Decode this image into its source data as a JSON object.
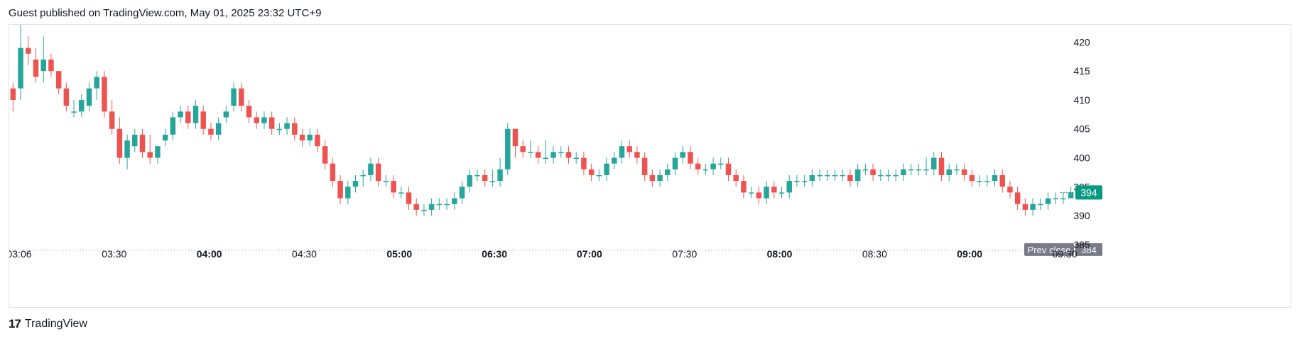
{
  "header": {
    "text": "Guest published on TradingView.com, May 01, 2025 23:32 UTC+9"
  },
  "footer": {
    "logo": "17",
    "brand": "TradingView"
  },
  "colors": {
    "up": "#26a69a",
    "down": "#ef5350",
    "grey_label": "#787b86",
    "last_price_bg": "#089981"
  },
  "chart_data": {
    "type": "candlestick",
    "y_axis": {
      "ticks": [
        385,
        390,
        395,
        400,
        405,
        410,
        415,
        420
      ],
      "range": [
        383.5,
        423
      ]
    },
    "x_axis": {
      "ticks": [
        {
          "label": "03:06",
          "bold": false
        },
        {
          "label": "03:30",
          "bold": false
        },
        {
          "label": "04:00",
          "bold": true
        },
        {
          "label": "04:30",
          "bold": false
        },
        {
          "label": "05:00",
          "bold": true
        },
        {
          "label": "06:30",
          "bold": true
        },
        {
          "label": "07:00",
          "bold": true
        },
        {
          "label": "07:30",
          "bold": false
        },
        {
          "label": "08:00",
          "bold": true
        },
        {
          "label": "08:30",
          "bold": false
        },
        {
          "label": "09:00",
          "bold": true
        },
        {
          "label": "09:30",
          "bold": false
        }
      ]
    },
    "prev_close": {
      "label": "Prev close",
      "value": 384
    },
    "last_price": 394,
    "series_close": [
      410,
      419,
      418,
      414,
      417,
      415,
      412,
      409,
      408,
      410,
      412,
      414,
      408,
      405,
      400,
      403,
      404,
      401,
      400,
      402,
      404,
      407,
      408,
      406,
      409,
      405,
      404,
      406,
      408,
      412,
      409,
      407,
      406,
      407,
      405,
      405,
      406,
      404,
      403,
      404,
      402,
      399,
      396,
      393,
      395,
      396,
      397,
      399,
      396,
      396,
      394,
      394,
      392,
      391,
      391,
      392,
      392,
      392,
      393,
      395,
      397,
      397,
      396,
      396,
      398,
      405,
      402,
      401,
      401,
      400,
      400,
      401,
      401,
      400,
      400,
      398,
      397,
      397,
      399,
      400,
      402,
      401,
      400,
      397,
      396,
      397,
      398,
      400,
      401,
      399,
      398,
      398,
      399,
      399,
      397,
      396,
      394,
      394,
      393,
      395,
      394,
      394,
      396,
      396,
      396,
      397,
      397,
      397,
      397,
      397,
      396,
      398,
      398,
      397,
      397,
      397,
      397,
      398,
      398,
      398,
      398,
      400,
      397,
      398,
      398,
      397,
      396,
      396,
      396,
      397,
      395,
      394,
      392,
      391,
      392,
      392,
      393,
      393,
      393,
      394
    ],
    "series_open": [
      412,
      412,
      419,
      417,
      415,
      417,
      415,
      412,
      408,
      408,
      409,
      412,
      414,
      408,
      405,
      400,
      402,
      404,
      401,
      400,
      403,
      404,
      407,
      408,
      406,
      408,
      405,
      404,
      407,
      409,
      412,
      409,
      407,
      406,
      407,
      405,
      405,
      406,
      404,
      403,
      404,
      402,
      399,
      396,
      393,
      395,
      397,
      397,
      399,
      396,
      396,
      394,
      394,
      392,
      391,
      391,
      392,
      392,
      392,
      393,
      395,
      397,
      397,
      396,
      396,
      398,
      405,
      402,
      401,
      401,
      400,
      400,
      401,
      401,
      400,
      400,
      398,
      397,
      397,
      399,
      400,
      402,
      401,
      400,
      397,
      396,
      397,
      398,
      400,
      401,
      399,
      398,
      398,
      399,
      399,
      397,
      396,
      394,
      394,
      393,
      395,
      394,
      394,
      396,
      396,
      396,
      397,
      397,
      397,
      397,
      397,
      396,
      398,
      398,
      397,
      397,
      397,
      397,
      398,
      398,
      398,
      398,
      400,
      397,
      398,
      398,
      397,
      396,
      396,
      396,
      397,
      395,
      394,
      392,
      391,
      392,
      392,
      393,
      393,
      393
    ],
    "series_high": [
      413,
      423,
      421,
      419,
      421,
      418,
      415,
      413,
      410,
      411,
      413,
      415,
      415,
      410,
      407,
      404,
      405,
      405,
      404,
      402,
      405,
      408,
      409,
      409,
      410,
      409,
      406,
      407,
      409,
      413,
      413,
      410,
      408,
      408,
      408,
      406,
      407,
      407,
      405,
      405,
      405,
      403,
      400,
      397,
      396,
      397,
      398,
      400,
      400,
      397,
      397,
      395,
      395,
      393,
      392,
      393,
      393,
      393,
      394,
      396,
      398,
      398,
      398,
      398,
      400,
      406,
      405,
      403,
      403,
      402,
      403,
      402,
      402,
      402,
      401,
      401,
      399,
      398,
      400,
      401,
      403,
      403,
      402,
      401,
      398,
      398,
      399,
      401,
      402,
      402,
      400,
      399,
      400,
      400,
      400,
      398,
      397,
      395,
      395,
      396,
      396,
      395,
      397,
      397,
      397,
      398,
      398,
      398,
      398,
      398,
      398,
      399,
      399,
      399,
      398,
      398,
      398,
      399,
      399,
      399,
      400,
      401,
      401,
      399,
      399,
      399,
      398,
      397,
      397,
      398,
      398,
      396,
      395,
      393,
      393,
      393,
      394,
      394,
      394,
      395
    ],
    "series_low": [
      408,
      410,
      416,
      413,
      413,
      414,
      411,
      408,
      407,
      407,
      408,
      410,
      407,
      404,
      399,
      398,
      401,
      400,
      399,
      399,
      402,
      403,
      406,
      405,
      405,
      404,
      403,
      403,
      406,
      408,
      408,
      406,
      405,
      405,
      404,
      404,
      404,
      403,
      402,
      402,
      401,
      398,
      395,
      392,
      392,
      394,
      395,
      396,
      395,
      395,
      393,
      393,
      391,
      390,
      390,
      390,
      391,
      391,
      391,
      392,
      394,
      396,
      395,
      395,
      395,
      397,
      400,
      400,
      400,
      399,
      399,
      399,
      400,
      399,
      399,
      397,
      396,
      396,
      396,
      398,
      399,
      400,
      399,
      396,
      395,
      395,
      396,
      397,
      399,
      398,
      397,
      397,
      397,
      398,
      396,
      395,
      393,
      393,
      392,
      392,
      393,
      393,
      393,
      395,
      395,
      395,
      396,
      396,
      396,
      396,
      395,
      395,
      397,
      396,
      396,
      396,
      396,
      396,
      397,
      397,
      397,
      397,
      396,
      396,
      397,
      396,
      395,
      395,
      395,
      395,
      394,
      393,
      391,
      390,
      390,
      391,
      391,
      392,
      392,
      393
    ]
  }
}
